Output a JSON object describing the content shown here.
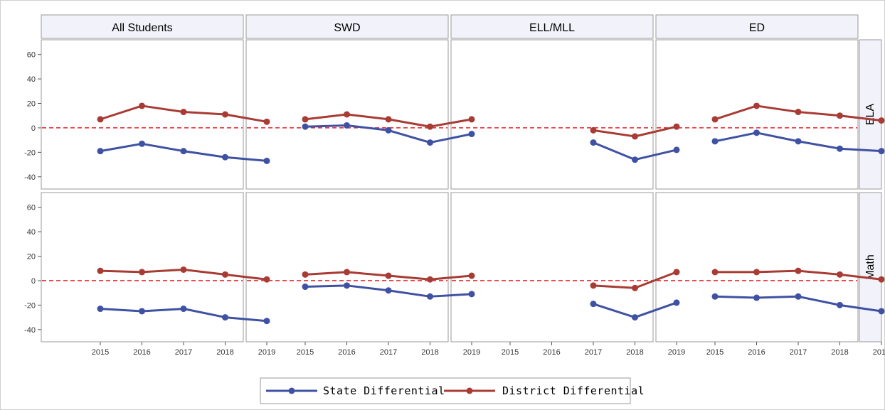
{
  "chart_data": {
    "type": "line",
    "title": "",
    "columns": [
      "All Students",
      "SWD",
      "ELL/MLL",
      "ED"
    ],
    "rows": [
      "ELA",
      "Math"
    ],
    "x": [
      2015,
      2016,
      2017,
      2018,
      2019
    ],
    "xticks": [
      "2015",
      "2016",
      "2017",
      "2018",
      "2019"
    ],
    "yticks": [
      "60",
      "40",
      "20",
      "0",
      "-20",
      "-40"
    ],
    "ylim": [
      -50,
      72
    ],
    "reference_line": 0,
    "grid": false,
    "legend_placement": "bottom-center",
    "series_meta": [
      {
        "name": "State Differential",
        "color": "#3f51a3"
      },
      {
        "name": "District Differential",
        "color": "#a83c34"
      }
    ],
    "panels": [
      {
        "row": "ELA",
        "column": "All Students",
        "series": [
          {
            "name": "State Differential",
            "values": [
              -19,
              -13,
              -19,
              -24,
              -27
            ]
          },
          {
            "name": "District Differential",
            "values": [
              7,
              18,
              13,
              11,
              5
            ]
          }
        ]
      },
      {
        "row": "ELA",
        "column": "SWD",
        "series": [
          {
            "name": "State Differential",
            "values": [
              1,
              2,
              -2,
              -12,
              -5
            ]
          },
          {
            "name": "District Differential",
            "values": [
              7,
              11,
              7,
              1,
              7
            ]
          }
        ]
      },
      {
        "row": "ELA",
        "column": "ELL/MLL",
        "series": [
          {
            "name": "State Differential",
            "values": [
              null,
              null,
              -12,
              -26,
              -18
            ]
          },
          {
            "name": "District Differential",
            "values": [
              null,
              null,
              -2,
              -7,
              1
            ]
          }
        ]
      },
      {
        "row": "ELA",
        "column": "ED",
        "series": [
          {
            "name": "State Differential",
            "values": [
              -11,
              -4,
              -11,
              -17,
              -19
            ]
          },
          {
            "name": "District Differential",
            "values": [
              7,
              18,
              13,
              10,
              6
            ]
          }
        ]
      },
      {
        "row": "Math",
        "column": "All Students",
        "series": [
          {
            "name": "State Differential",
            "values": [
              -23,
              -25,
              -23,
              -30,
              -33
            ]
          },
          {
            "name": "District Differential",
            "values": [
              8,
              7,
              9,
              5,
              1
            ]
          }
        ]
      },
      {
        "row": "Math",
        "column": "SWD",
        "series": [
          {
            "name": "State Differential",
            "values": [
              -5,
              -4,
              -8,
              -13,
              -11
            ]
          },
          {
            "name": "District Differential",
            "values": [
              5,
              7,
              4,
              1,
              4
            ]
          }
        ]
      },
      {
        "row": "Math",
        "column": "ELL/MLL",
        "series": [
          {
            "name": "State Differential",
            "values": [
              null,
              null,
              -19,
              -30,
              -18
            ]
          },
          {
            "name": "District Differential",
            "values": [
              null,
              null,
              -4,
              -6,
              7
            ]
          }
        ]
      },
      {
        "row": "Math",
        "column": "ED",
        "series": [
          {
            "name": "State Differential",
            "values": [
              -13,
              -14,
              -13,
              -20,
              -25
            ]
          },
          {
            "name": "District Differential",
            "values": [
              7,
              7,
              8,
              5,
              1
            ]
          }
        ]
      }
    ]
  }
}
